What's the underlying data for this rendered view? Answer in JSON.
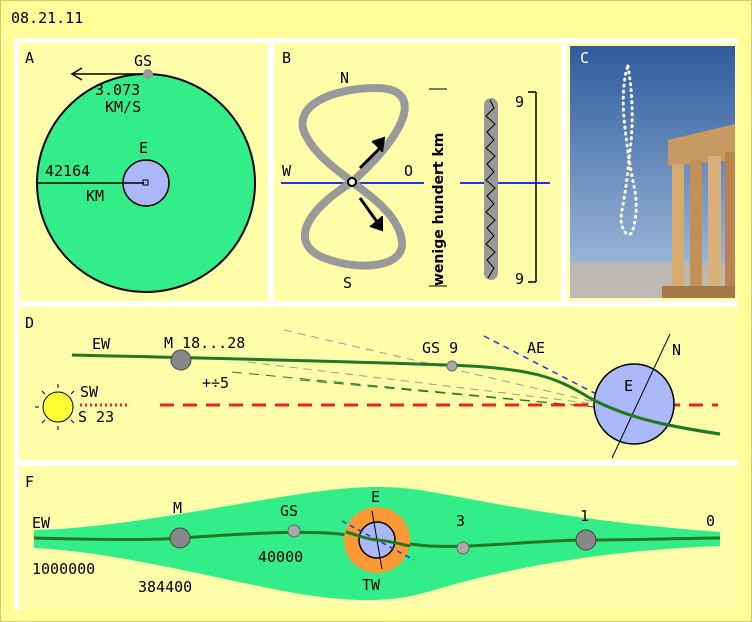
{
  "date": "08.21.11",
  "colors": {
    "outer_bg": "#ffff99",
    "panel_bg": "#ffffaa",
    "orbit_green": "#33ee88",
    "earth_blue": "#aab8f8",
    "gray_path": "#999999",
    "dark_green_line": "#227722",
    "red_dash": "#ee2222",
    "blue_line": "#2233ee",
    "sun_yellow": "#ffff33",
    "orange_ring": "#ff9933",
    "sky_blue": "#6f94c7"
  },
  "panel_a": {
    "label": "A",
    "gs": "GS",
    "speed_value": "3.073",
    "speed_unit": "KM/S",
    "earth": "E",
    "radius_value": "42164",
    "radius_unit": "KM"
  },
  "panel_b": {
    "label": "B",
    "north": "N",
    "south": "S",
    "west": "W",
    "east": "O",
    "vertical_text": "wenige hundert km",
    "scale_top": "9",
    "scale_bottom": "9"
  },
  "panel_c": {
    "label": "C",
    "icon": "parthenon-photo"
  },
  "panel_d": {
    "label": "D",
    "ew": "EW",
    "moon_range": "M 18...28",
    "gs_label": "GS 9",
    "ae": "AE",
    "north": "N",
    "plus_minus": "+÷5",
    "sw": "SW",
    "s23": "S 23",
    "earth": "E",
    "icon": "sun-icon"
  },
  "panel_f": {
    "label": "F",
    "ew": "EW",
    "moon": "M",
    "gs": "GS",
    "earth": "E",
    "tw": "TW",
    "val_3": "3",
    "val_1": "1",
    "val_0": "0",
    "dist_1000000": "1000000",
    "dist_384400": "384400",
    "dist_40000": "40000"
  }
}
